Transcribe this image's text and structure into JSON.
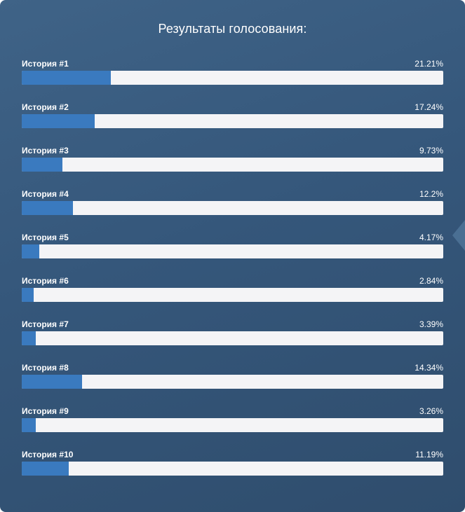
{
  "title": "Результаты голосования:",
  "colors": {
    "fill": "#3a7abf",
    "track": "#f4f4f6",
    "text": "#ffffff"
  },
  "results": [
    {
      "label": "История #1",
      "percent_text": "21.21%",
      "value": 21.21
    },
    {
      "label": "История #2",
      "percent_text": "17.24%",
      "value": 17.24
    },
    {
      "label": "История #3",
      "percent_text": "9.73%",
      "value": 9.73
    },
    {
      "label": "История #4",
      "percent_text": "12.2%",
      "value": 12.2
    },
    {
      "label": "История #5",
      "percent_text": "4.17%",
      "value": 4.17
    },
    {
      "label": "История #6",
      "percent_text": "2.84%",
      "value": 2.84
    },
    {
      "label": "История #7",
      "percent_text": "3.39%",
      "value": 3.39
    },
    {
      "label": "История #8",
      "percent_text": "14.34%",
      "value": 14.34
    },
    {
      "label": "История #9",
      "percent_text": "3.26%",
      "value": 3.26
    },
    {
      "label": "История #10",
      "percent_text": "11.19%",
      "value": 11.19
    }
  ]
}
